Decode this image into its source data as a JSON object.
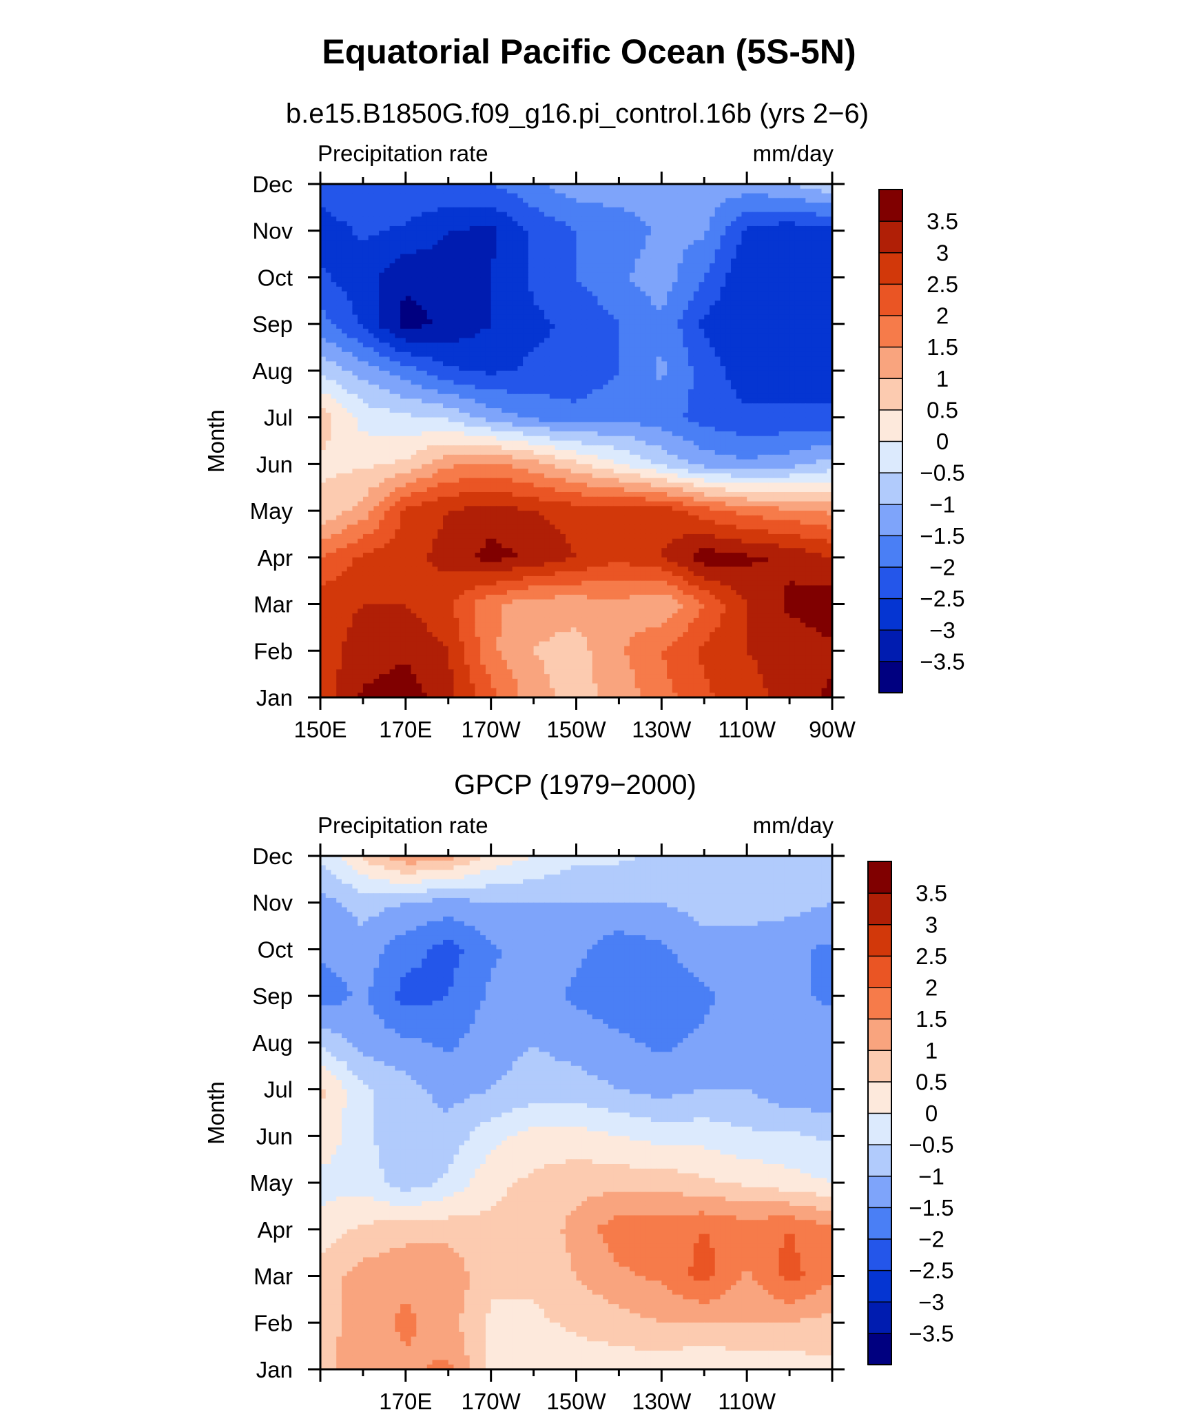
{
  "figure": {
    "title": "Equatorial Pacific Ocean (5S-5N)"
  },
  "palette": [
    "#000080",
    "#001cb0",
    "#0535d2",
    "#2456ea",
    "#4a7ff5",
    "#7ea4fa",
    "#b1cbfc",
    "#dceafd",
    "#fde9dc",
    "#fccbb0",
    "#f9a47e",
    "#f67b4a",
    "#ea5524",
    "#d2380a",
    "#b01f06",
    "#800000"
  ],
  "chart_data": [
    {
      "type": "heatmap",
      "subtitle": "b.e15.B1850G.f09_g16.pi_control.16b (yrs 2−6)",
      "left_label": "Precipitation rate",
      "right_label": "mm/day",
      "ylabel": "Month",
      "x_ticks": [
        "150E",
        "170E",
        "170W",
        "150W",
        "130W",
        "110W",
        "90W"
      ],
      "y_ticks": [
        "Jan",
        "Feb",
        "Mar",
        "Apr",
        "May",
        "Jun",
        "Jul",
        "Aug",
        "Sep",
        "Oct",
        "Nov",
        "Dec"
      ],
      "levels": [
        "3.5",
        "3",
        "2.5",
        "2",
        "1.5",
        "1",
        "0.5",
        "0",
        "−0.5",
        "−1",
        "−1.5",
        "−2",
        "−2.5",
        "−3",
        "−3.5"
      ],
      "x_lon": [
        150,
        160,
        170,
        180,
        190,
        200,
        210,
        220,
        230,
        240,
        250,
        260,
        270
      ],
      "values": [
        [
          2.6,
          3.6,
          3.8,
          3.2,
          2.2,
          1.2,
          0.8,
          1.2,
          1.8,
          2.4,
          2.8,
          3.2,
          3.6
        ],
        [
          2.8,
          3.2,
          3.4,
          3.0,
          1.6,
          1.0,
          0.8,
          1.4,
          2.0,
          2.6,
          3.0,
          3.2,
          3.4
        ],
        [
          2.8,
          3.0,
          3.0,
          2.6,
          1.6,
          1.2,
          1.2,
          1.4,
          1.0,
          2.0,
          3.0,
          3.6,
          3.8
        ],
        [
          2.0,
          2.6,
          2.8,
          3.2,
          3.7,
          3.4,
          3.0,
          2.6,
          3.0,
          3.8,
          3.6,
          3.4,
          3.0
        ],
        [
          0.6,
          1.2,
          2.6,
          3.0,
          3.2,
          3.0,
          2.8,
          2.8,
          2.8,
          2.2,
          1.8,
          1.6,
          1.4
        ],
        [
          0.4,
          0.4,
          0.6,
          1.4,
          1.6,
          1.2,
          0.6,
          0.0,
          -0.6,
          -1.2,
          -1.4,
          -1.2,
          -0.8
        ],
        [
          0.8,
          -0.2,
          -0.4,
          -0.6,
          -1.2,
          -1.6,
          -1.8,
          -1.6,
          -1.8,
          -2.2,
          -2.4,
          -2.4,
          -2.4
        ],
        [
          -0.6,
          -1.2,
          -1.8,
          -2.4,
          -2.6,
          -2.4,
          -2.4,
          -2.0,
          -1.4,
          -2.2,
          -2.8,
          -2.8,
          -2.8
        ],
        [
          -1.8,
          -2.6,
          -3.7,
          -3.4,
          -3.0,
          -2.6,
          -2.4,
          -2.0,
          -1.6,
          -2.6,
          -3.0,
          -3.0,
          -2.8
        ],
        [
          -2.4,
          -2.8,
          -3.4,
          -3.2,
          -3.0,
          -2.4,
          -2.0,
          -1.6,
          -1.2,
          -2.0,
          -3.0,
          -3.0,
          -3.0
        ],
        [
          -2.8,
          -2.4,
          -2.6,
          -3.0,
          -3.1,
          -2.4,
          -2.0,
          -1.8,
          -1.4,
          -1.4,
          -2.6,
          -2.8,
          -2.6
        ],
        [
          -2.2,
          -2.0,
          -2.0,
          -2.0,
          -2.0,
          -1.6,
          -1.2,
          -1.2,
          -1.2,
          -1.2,
          -1.2,
          -1.0,
          -0.6
        ]
      ]
    },
    {
      "type": "heatmap",
      "subtitle": "GPCP (1979−2000)",
      "left_label": "Precipitation rate",
      "right_label": "mm/day",
      "ylabel": "Month",
      "x_ticks": [
        "170E",
        "170W",
        "150W",
        "130W",
        "110W"
      ],
      "y_ticks": [
        "Jan",
        "Feb",
        "Mar",
        "Apr",
        "May",
        "Jun",
        "Jul",
        "Aug",
        "Sep",
        "Oct",
        "Nov",
        "Dec"
      ],
      "levels": [
        "3.5",
        "3",
        "2.5",
        "2",
        "1.5",
        "1",
        "0.5",
        "0",
        "−0.5",
        "−1",
        "−1.5",
        "−2",
        "−2.5",
        "−3",
        "−3.5"
      ],
      "x_lon": [
        150,
        160,
        170,
        180,
        190,
        200,
        210,
        220,
        230,
        240,
        250,
        260,
        270
      ],
      "values": [
        [
          0.8,
          1.4,
          1.4,
          1.6,
          0.4,
          0.2,
          0.2,
          0.2,
          0.2,
          0.0,
          0.2,
          0.2,
          0.4
        ],
        [
          0.8,
          1.2,
          1.6,
          1.2,
          0.4,
          0.4,
          0.6,
          0.8,
          1.0,
          1.0,
          1.0,
          1.0,
          0.8
        ],
        [
          0.8,
          1.2,
          1.4,
          1.4,
          0.6,
          0.6,
          1.0,
          1.4,
          1.6,
          2.2,
          1.4,
          2.2,
          1.6
        ],
        [
          0.2,
          0.6,
          0.8,
          0.8,
          0.6,
          0.6,
          1.2,
          1.8,
          1.8,
          2.0,
          1.8,
          2.0,
          1.6
        ],
        [
          -0.2,
          -0.2,
          -0.8,
          -0.4,
          0.4,
          0.6,
          0.8,
          0.8,
          0.8,
          0.6,
          0.4,
          0.2,
          0.0
        ],
        [
          0.4,
          -0.4,
          -0.8,
          -0.8,
          -0.2,
          0.2,
          0.2,
          0.0,
          -0.2,
          -0.2,
          -0.4,
          -0.4,
          -0.6
        ],
        [
          0.6,
          -0.4,
          -0.8,
          -1.2,
          -1.0,
          -0.8,
          -0.8,
          -1.0,
          -1.2,
          -1.0,
          -1.0,
          -1.4,
          -1.4
        ],
        [
          -0.6,
          -1.2,
          -1.4,
          -1.6,
          -1.2,
          -1.0,
          -1.2,
          -1.4,
          -1.6,
          -1.4,
          -1.2,
          -1.2,
          -1.2
        ],
        [
          -1.8,
          -1.4,
          -2.2,
          -2.0,
          -1.4,
          -1.2,
          -1.6,
          -1.8,
          -1.8,
          -1.6,
          -1.2,
          -1.4,
          -1.6
        ],
        [
          -1.4,
          -1.2,
          -1.8,
          -2.2,
          -1.6,
          -1.2,
          -1.4,
          -1.8,
          -1.6,
          -1.2,
          -1.2,
          -1.4,
          -1.6
        ],
        [
          -1.2,
          -0.8,
          -1.0,
          -1.2,
          -1.0,
          -1.0,
          -1.0,
          -1.0,
          -1.0,
          -0.8,
          -0.8,
          -0.8,
          -1.0
        ],
        [
          -0.4,
          0.6,
          1.4,
          1.2,
          0.4,
          0.0,
          -0.4,
          -0.4,
          -0.6,
          -0.6,
          -0.6,
          -0.6,
          -0.6
        ]
      ]
    }
  ]
}
